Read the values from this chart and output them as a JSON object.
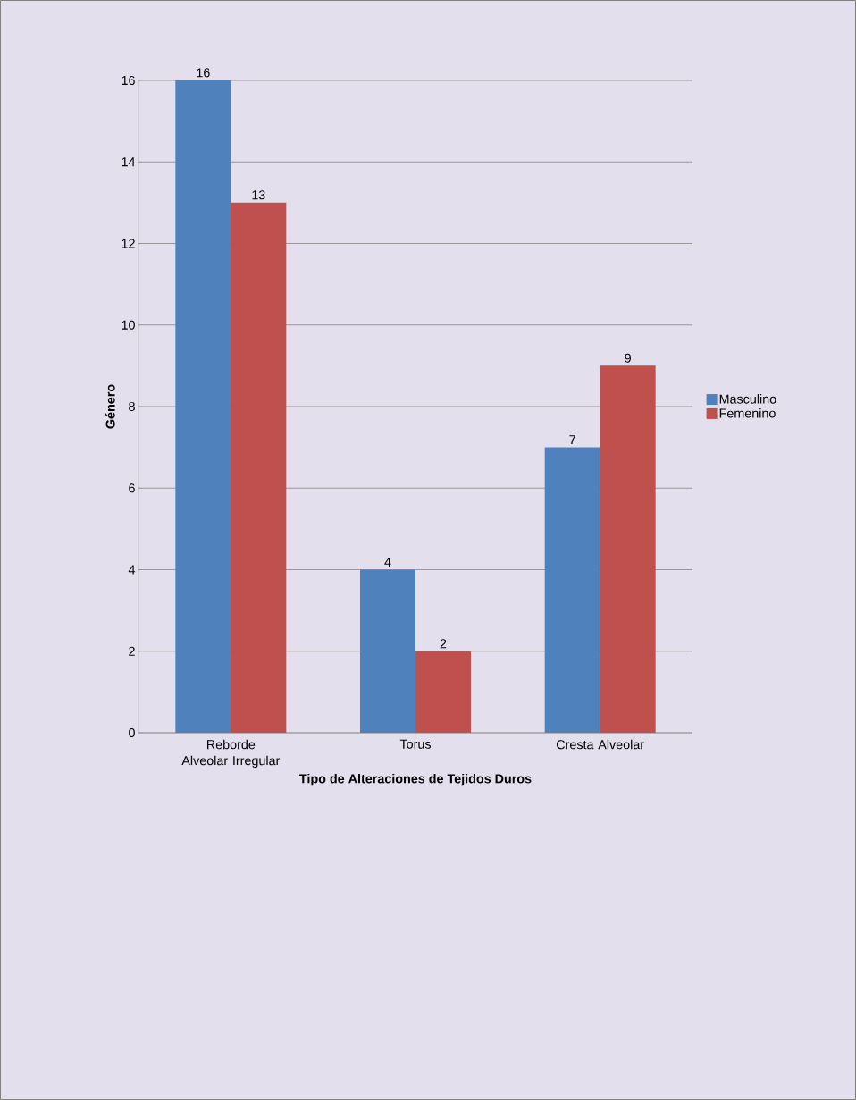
{
  "chart_data": {
    "type": "bar",
    "xlabel": "Tipo de Alteraciones de Tejidos Duros",
    "ylabel": "Género",
    "categories": [
      "Reborde Alveolar Irregular",
      "Torus",
      "Cresta Alveolar"
    ],
    "series": [
      {
        "name": "Masculino",
        "color": "#4f81bd",
        "values": [
          16,
          4,
          7
        ]
      },
      {
        "name": "Femenino",
        "color": "#c0504d",
        "values": [
          13,
          2,
          9
        ]
      }
    ],
    "ylim": [
      0,
      16
    ],
    "yticks": [
      0,
      2,
      4,
      6,
      8,
      10,
      12,
      14,
      16
    ],
    "grid": "y",
    "legend": "right",
    "data_labels": true
  }
}
